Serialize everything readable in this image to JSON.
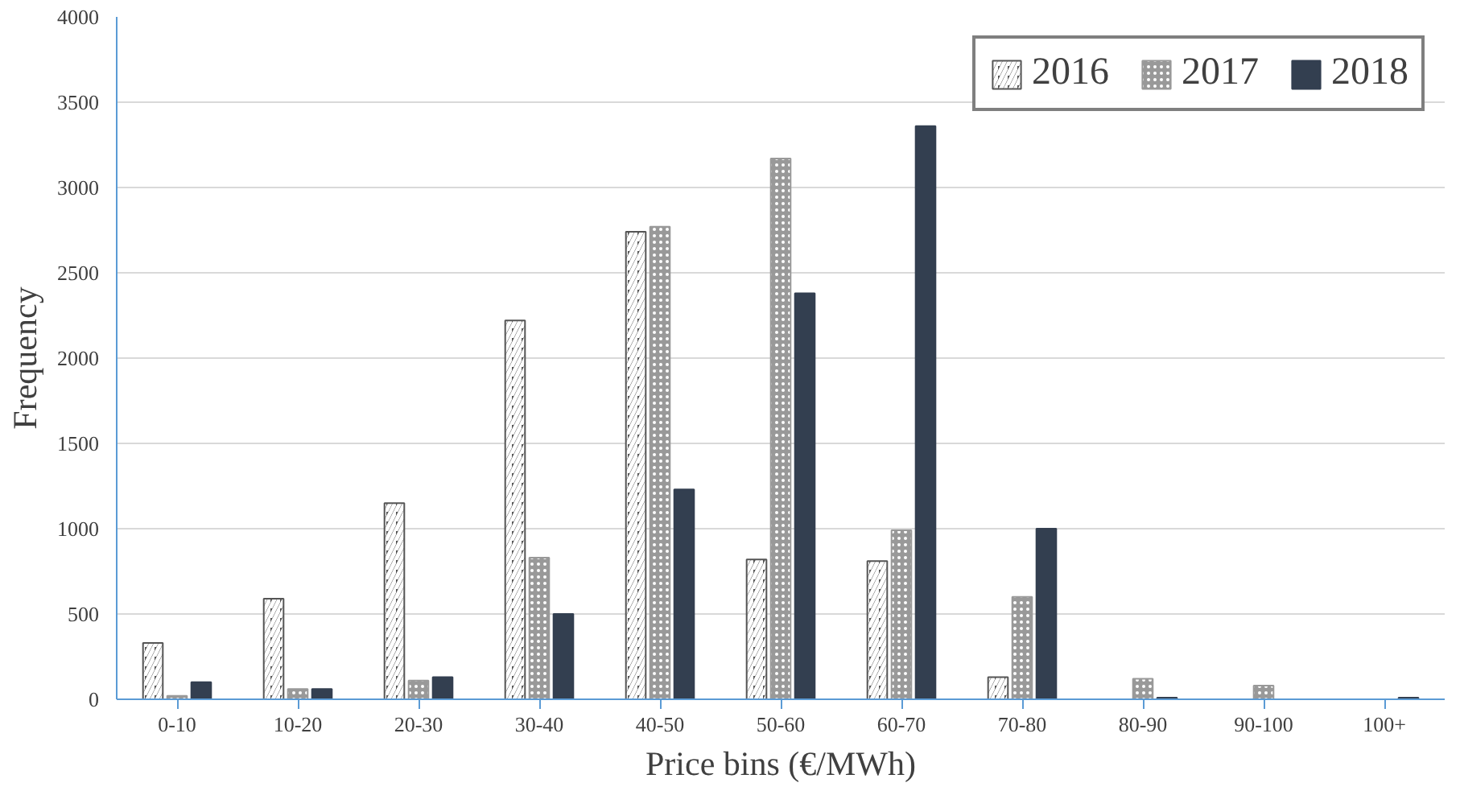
{
  "chart_data": {
    "type": "bar",
    "xlabel": "Price bins (€/MWh)",
    "ylabel": "Frequency",
    "categories": [
      "0-10",
      "10-20",
      "20-30",
      "30-40",
      "40-50",
      "50-60",
      "60-70",
      "70-80",
      "80-90",
      "90-100",
      "100+"
    ],
    "series": [
      {
        "name": "2016",
        "color": "#555555",
        "values": [
          330,
          590,
          1150,
          2220,
          2740,
          820,
          810,
          130,
          0,
          0,
          0
        ]
      },
      {
        "name": "2017",
        "color": "#999999",
        "values": [
          20,
          60,
          110,
          830,
          2770,
          3170,
          990,
          600,
          120,
          80,
          0
        ]
      },
      {
        "name": "2018",
        "color": "#333f50",
        "values": [
          100,
          60,
          130,
          500,
          1230,
          2380,
          3360,
          1000,
          10,
          0,
          10
        ]
      }
    ],
    "ylim": [
      0,
      4000
    ],
    "yticks": [
      0,
      500,
      1000,
      1500,
      2000,
      2500,
      3000,
      3500,
      4000
    ],
    "grid": "y",
    "legend": "top right"
  }
}
